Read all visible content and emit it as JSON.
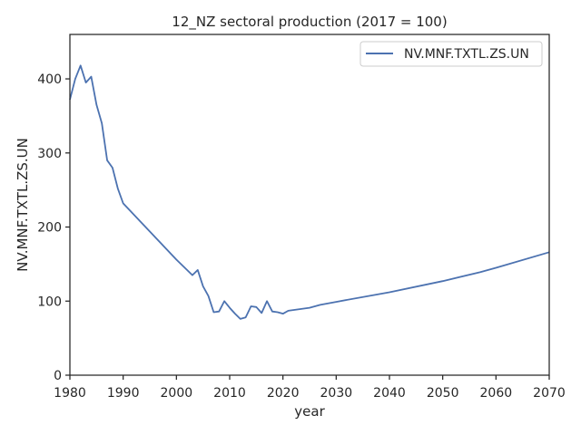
{
  "chart_data": {
    "type": "line",
    "title": "12_NZ sectoral production (2017 = 100)",
    "xlabel": "year",
    "ylabel": "NV.MNF.TXTL.ZS.UN",
    "xlim": [
      1980,
      2070
    ],
    "ylim": [
      0,
      460
    ],
    "x_ticks": [
      1980,
      1990,
      2000,
      2010,
      2020,
      2030,
      2040,
      2050,
      2060,
      2070
    ],
    "y_ticks": [
      0,
      100,
      200,
      300,
      400
    ],
    "grid": false,
    "legend_position": "top-right",
    "series": [
      {
        "name": "NV.MNF.TXTL.ZS.UN",
        "color": "#4c72b0",
        "points": [
          [
            1980,
            372
          ],
          [
            1981,
            400
          ],
          [
            1982,
            418
          ],
          [
            1983,
            395
          ],
          [
            1984,
            403
          ],
          [
            1985,
            365
          ],
          [
            1986,
            340
          ],
          [
            1987,
            290
          ],
          [
            1988,
            280
          ],
          [
            1989,
            252
          ],
          [
            1990,
            232
          ],
          [
            2000,
            156
          ],
          [
            2003,
            135
          ],
          [
            2004,
            142
          ],
          [
            2005,
            120
          ],
          [
            2006,
            107
          ],
          [
            2007,
            85
          ],
          [
            2008,
            86
          ],
          [
            2009,
            100
          ],
          [
            2010,
            91
          ],
          [
            2011,
            83
          ],
          [
            2012,
            76
          ],
          [
            2013,
            78
          ],
          [
            2014,
            93
          ],
          [
            2015,
            92
          ],
          [
            2016,
            84
          ],
          [
            2017,
            100
          ],
          [
            2018,
            86
          ],
          [
            2019,
            85
          ],
          [
            2020,
            83
          ],
          [
            2021,
            87
          ],
          [
            2025,
            91
          ],
          [
            2027,
            95
          ],
          [
            2030,
            99
          ],
          [
            2040,
            112
          ],
          [
            2050,
            127
          ],
          [
            2057,
            139
          ],
          [
            2060,
            145
          ],
          [
            2070,
            166
          ]
        ]
      }
    ]
  }
}
